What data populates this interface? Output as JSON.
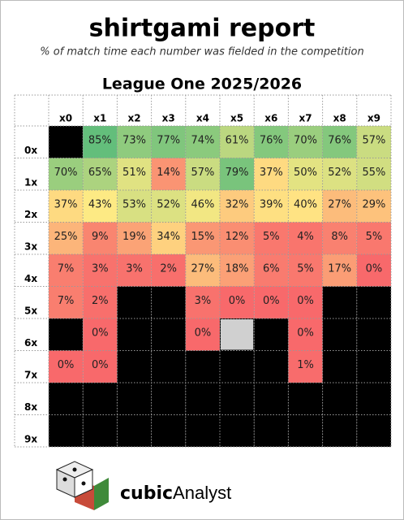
{
  "chart_data": {
    "type": "heatmap",
    "title": "shirtgami report",
    "subtitle": "% of match time each number was fielded in the competition",
    "heading": "League One 2025/2026",
    "columns": [
      "x0",
      "x1",
      "x2",
      "x3",
      "x4",
      "x5",
      "x6",
      "x7",
      "x8",
      "x9"
    ],
    "rows": [
      "0x",
      "1x",
      "2x",
      "3x",
      "4x",
      "5x",
      "6x",
      "7x",
      "8x",
      "9x"
    ],
    "values": [
      [
        null,
        85,
        73,
        77,
        74,
        61,
        76,
        70,
        76,
        57
      ],
      [
        70,
        65,
        51,
        14,
        57,
        79,
        37,
        50,
        52,
        55
      ],
      [
        37,
        43,
        53,
        52,
        46,
        32,
        39,
        40,
        27,
        29
      ],
      [
        25,
        9,
        19,
        34,
        15,
        12,
        5,
        4,
        8,
        5
      ],
      [
        7,
        3,
        3,
        2,
        27,
        18,
        6,
        5,
        17,
        0
      ],
      [
        7,
        2,
        null,
        null,
        3,
        0,
        0,
        0,
        null,
        null
      ],
      [
        null,
        0,
        null,
        null,
        0,
        null,
        null,
        0,
        null,
        null
      ],
      [
        0,
        0,
        null,
        null,
        null,
        null,
        null,
        1,
        null,
        null
      ],
      [
        null,
        null,
        null,
        null,
        null,
        null,
        null,
        null,
        null,
        null
      ],
      [
        null,
        null,
        null,
        null,
        null,
        null,
        null,
        null,
        null,
        null
      ]
    ],
    "value_labels": [
      [
        null,
        "85%",
        "73%",
        "77%",
        "74%",
        "61%",
        "76%",
        "70%",
        "76%",
        "57%"
      ],
      [
        "70%",
        "65%",
        "51%",
        "14%",
        "57%",
        "79%",
        "37%",
        "50%",
        "52%",
        "55%"
      ],
      [
        "37%",
        "43%",
        "53%",
        "52%",
        "46%",
        "32%",
        "39%",
        "40%",
        "27%",
        "29%"
      ],
      [
        "25%",
        "9%",
        "19%",
        "34%",
        "15%",
        "12%",
        "5%",
        "4%",
        "8%",
        "5%"
      ],
      [
        "7%",
        "3%",
        "3%",
        "2%",
        "27%",
        "18%",
        "6%",
        "5%",
        "17%",
        "0%"
      ],
      [
        "7%",
        "2%",
        null,
        null,
        "3%",
        "0%",
        "0%",
        "0%",
        null,
        null
      ],
      [
        null,
        "0%",
        null,
        null,
        "0%",
        null,
        null,
        "0%",
        null,
        null
      ],
      [
        "0%",
        "0%",
        null,
        null,
        null,
        null,
        null,
        "1%",
        null,
        null
      ],
      [
        null,
        null,
        null,
        null,
        null,
        null,
        null,
        null,
        null,
        null
      ],
      [
        null,
        null,
        null,
        null,
        null,
        null,
        null,
        null,
        null,
        null
      ]
    ],
    "colors": [
      "#f8696b",
      "#ffeb84",
      "#63be7b"
    ],
    "missing_color": "#000000",
    "brand_bold": "cubic",
    "brand_regular": "Analyst"
  }
}
